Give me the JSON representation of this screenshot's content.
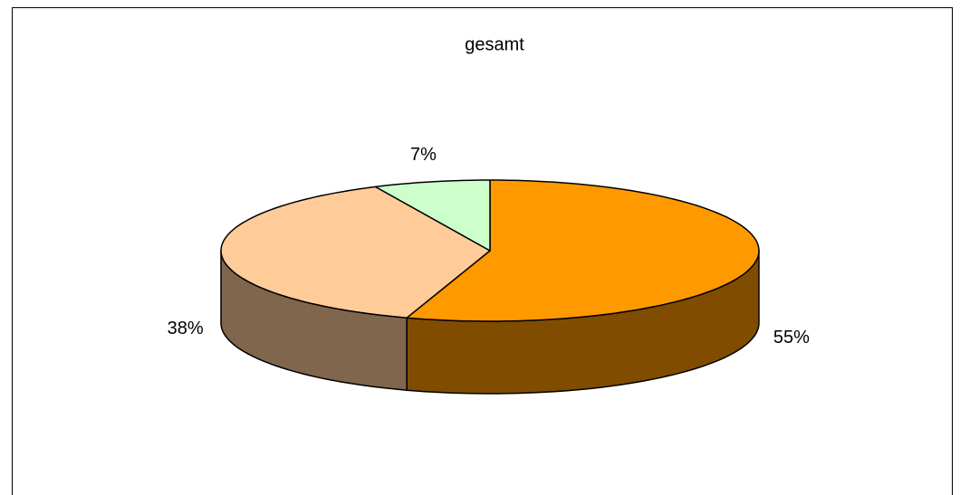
{
  "chart_data": {
    "type": "pie",
    "title": "gesamt",
    "values": [
      55,
      38,
      7
    ],
    "value_labels": [
      "55%",
      "38%",
      "7%"
    ],
    "colors": [
      "#ff9900",
      "#ffcc99",
      "#ccffcc"
    ]
  }
}
